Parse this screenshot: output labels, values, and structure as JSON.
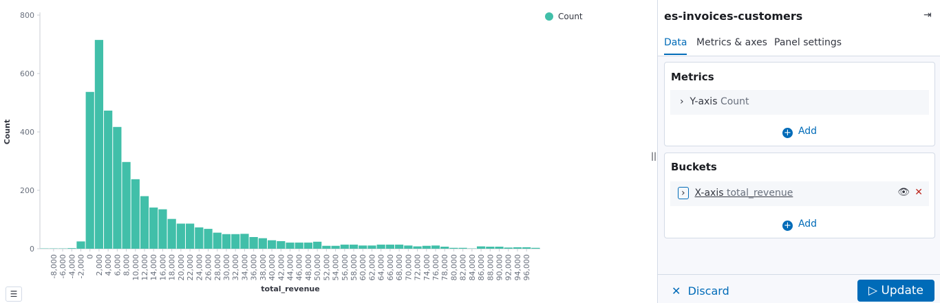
{
  "chart_data": {
    "type": "histogram",
    "x_label": "total_revenue",
    "y_label": "Count",
    "series": [
      {
        "name": "Count",
        "color": "#41bfa9"
      }
    ],
    "bins": [
      -10000,
      -8000,
      -6000,
      -4000,
      -2000,
      0,
      2000,
      4000,
      6000,
      8000,
      10000,
      12000,
      14000,
      16000,
      18000,
      20000,
      22000,
      24000,
      26000,
      28000,
      30000,
      32000,
      34000,
      36000,
      38000,
      40000,
      42000,
      44000,
      46000,
      48000,
      50000,
      52000,
      54000,
      56000,
      58000,
      60000,
      62000,
      64000,
      66000,
      68000,
      70000,
      72000,
      74000,
      76000,
      78000,
      80000,
      82000,
      84000,
      86000,
      88000,
      90000,
      92000,
      94000,
      96000,
      98000,
      100000
    ],
    "values": [
      1,
      1,
      1,
      2,
      25,
      537,
      715,
      473,
      417,
      297,
      238,
      180,
      141,
      135,
      102,
      86,
      86,
      73,
      68,
      55,
      50,
      50,
      51,
      40,
      36,
      29,
      26,
      21,
      21,
      21,
      24,
      10,
      10,
      14,
      14,
      11,
      11,
      14,
      14,
      14,
      11,
      8,
      10,
      11,
      7,
      3,
      3,
      1,
      8,
      7,
      7,
      4,
      5,
      5,
      3
    ],
    "xlim": [
      -10000,
      100000
    ],
    "ylim": [
      0,
      800
    ],
    "yticks": [
      0,
      200,
      400,
      600,
      800
    ],
    "xticks": [
      {
        "value": -8000,
        "label": "-8,000"
      },
      {
        "value": -6000,
        "label": "-6,000"
      },
      {
        "value": -4000,
        "label": "-4,000"
      },
      {
        "value": -2000,
        "label": "-2,000"
      },
      0,
      {
        "value": 2000,
        "label": "2,000"
      },
      {
        "value": 4000,
        "label": "4,000"
      },
      {
        "value": 6000,
        "label": "6,000"
      },
      {
        "value": 8000,
        "label": "8,000"
      },
      {
        "value": 10000,
        "label": "10,000"
      },
      {
        "value": 12000,
        "label": "12,000"
      },
      {
        "value": 14000,
        "label": "14,000"
      },
      {
        "value": 16000,
        "label": "16,000"
      },
      {
        "value": 18000,
        "label": "18,000"
      },
      {
        "value": 20000,
        "label": "20,000"
      },
      {
        "value": 22000,
        "label": "22,000"
      },
      {
        "value": 24000,
        "label": "24,000"
      },
      {
        "value": 26000,
        "label": "26,000"
      },
      {
        "value": 28000,
        "label": "28,000"
      },
      {
        "value": 30000,
        "label": "30,000"
      },
      {
        "value": 32000,
        "label": "32,000"
      },
      {
        "value": 34000,
        "label": "34,000"
      },
      {
        "value": 36000,
        "label": "36,000"
      },
      {
        "value": 38000,
        "label": "38,000"
      },
      {
        "value": 40000,
        "label": "40,000"
      },
      {
        "value": 42000,
        "label": "42,000"
      },
      {
        "value": 44000,
        "label": "44,000"
      },
      {
        "value": 46000,
        "label": "46,000"
      },
      {
        "value": 48000,
        "label": "48,000"
      },
      {
        "value": 50000,
        "label": "50,000"
      },
      {
        "value": 52000,
        "label": "52,000"
      },
      {
        "value": 54000,
        "label": "54,000"
      },
      {
        "value": 56000,
        "label": "56,000"
      },
      {
        "value": 58000,
        "label": "58,000"
      },
      {
        "value": 60000,
        "label": "60,000"
      },
      {
        "value": 62000,
        "label": "62,000"
      },
      {
        "value": 64000,
        "label": "64,000"
      },
      {
        "value": 66000,
        "label": "66,000"
      },
      {
        "value": 68000,
        "label": "68,000"
      },
      {
        "value": 70000,
        "label": "70,000"
      },
      {
        "value": 72000,
        "label": "72,000"
      },
      {
        "value": 74000,
        "label": "74,000"
      },
      {
        "value": 76000,
        "label": "76,000"
      },
      {
        "value": 78000,
        "label": "78,000"
      },
      {
        "value": 80000,
        "label": "80,000"
      },
      {
        "value": 82000,
        "label": "82,000"
      },
      {
        "value": 84000,
        "label": "84,000"
      },
      {
        "value": 86000,
        "label": "86,000"
      },
      {
        "value": 88000,
        "label": "88,000"
      },
      {
        "value": 90000,
        "label": "90,000"
      },
      {
        "value": 92000,
        "label": "92,000"
      },
      {
        "value": 94000,
        "label": "94,000"
      },
      {
        "value": 96000,
        "label": "96,000"
      }
    ],
    "legend": "top-right"
  },
  "panel": {
    "title": "es-invoices-customers",
    "tabs": [
      "Data",
      "Metrics & axes",
      "Panel settings"
    ],
    "metrics": {
      "heading": "Metrics",
      "axis": "Y-axis",
      "field": "Count",
      "add": "Add"
    },
    "buckets": {
      "heading": "Buckets",
      "axis": "X-axis",
      "field": "total_revenue",
      "add": "Add"
    },
    "discard": "Discard",
    "update": "Update"
  }
}
